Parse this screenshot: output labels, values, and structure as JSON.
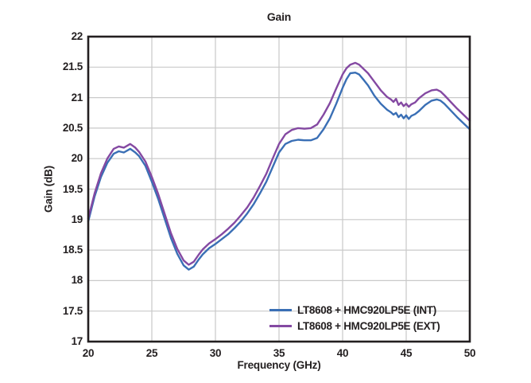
{
  "chart_data": {
    "type": "line",
    "title": "Gain",
    "xlabel": "Frequency (GHz)",
    "ylabel": "Gain (dB)",
    "xlim": [
      20,
      50
    ],
    "ylim": [
      17,
      22
    ],
    "x_ticks": [
      20,
      25,
      30,
      35,
      40,
      45,
      50
    ],
    "y_ticks": [
      22,
      21.5,
      21,
      20.5,
      20,
      19.5,
      19,
      18.5,
      18,
      17.5,
      17
    ],
    "grid": true,
    "legend_position": "inside-bottom-right",
    "colors": {
      "grid": "#c9c9c9",
      "axis": "#231f20",
      "text": "#231f20",
      "background": "#ffffff"
    },
    "x": [
      20,
      20.5,
      21,
      21.5,
      22,
      22.4,
      22.8,
      23.3,
      23.7,
      24,
      24.5,
      25,
      25.5,
      26,
      26.5,
      27,
      27.5,
      27.9,
      28.3,
      28.7,
      29,
      29.5,
      30,
      30.5,
      31,
      31.5,
      32,
      32.5,
      33,
      33.5,
      34,
      34.5,
      35,
      35.5,
      36,
      36.5,
      37,
      37.5,
      38,
      38.5,
      39,
      39.5,
      40,
      40.3,
      40.6,
      41,
      41.3,
      41.7,
      42,
      42.5,
      43,
      43.5,
      43.8,
      44,
      44.2,
      44.4,
      44.6,
      44.8,
      45,
      45.2,
      45.4,
      45.7,
      46,
      46.5,
      47,
      47.4,
      47.7,
      48,
      48.5,
      49,
      49.5,
      50
    ],
    "series": [
      {
        "name": "LT8608 + HMC920LP5E (INT)",
        "color": "#3a6fb5",
        "values": [
          18.97,
          19.38,
          19.7,
          19.93,
          20.08,
          20.12,
          20.1,
          20.16,
          20.1,
          20.04,
          19.88,
          19.62,
          19.34,
          19.02,
          18.7,
          18.44,
          18.25,
          18.18,
          18.23,
          18.35,
          18.43,
          18.53,
          18.6,
          18.68,
          18.76,
          18.86,
          18.97,
          19.1,
          19.25,
          19.43,
          19.62,
          19.86,
          20.1,
          20.24,
          20.29,
          20.31,
          20.3,
          20.3,
          20.34,
          20.48,
          20.66,
          20.9,
          21.16,
          21.3,
          21.4,
          21.41,
          21.38,
          21.28,
          21.2,
          21.03,
          20.9,
          20.8,
          20.76,
          20.72,
          20.75,
          20.68,
          20.72,
          20.66,
          20.71,
          20.65,
          20.7,
          20.73,
          20.78,
          20.88,
          20.95,
          20.97,
          20.95,
          20.9,
          20.79,
          20.68,
          20.58,
          20.48
        ]
      },
      {
        "name": "LT8608 + HMC920LP5E (EXT)",
        "color": "#8449a2",
        "values": [
          19.02,
          19.43,
          19.76,
          20.0,
          20.16,
          20.2,
          20.18,
          20.24,
          20.18,
          20.11,
          19.95,
          19.7,
          19.42,
          19.1,
          18.78,
          18.52,
          18.33,
          18.26,
          18.31,
          18.43,
          18.51,
          18.61,
          18.68,
          18.76,
          18.85,
          18.95,
          19.07,
          19.2,
          19.36,
          19.55,
          19.75,
          20.0,
          20.24,
          20.4,
          20.47,
          20.5,
          20.49,
          20.5,
          20.56,
          20.72,
          20.91,
          21.15,
          21.38,
          21.48,
          21.54,
          21.57,
          21.54,
          21.46,
          21.4,
          21.26,
          21.12,
          21.01,
          20.97,
          20.93,
          20.98,
          20.88,
          20.92,
          20.86,
          20.9,
          20.85,
          20.89,
          20.92,
          20.99,
          21.07,
          21.12,
          21.13,
          21.1,
          21.04,
          20.93,
          20.82,
          20.72,
          20.62
        ]
      }
    ]
  }
}
